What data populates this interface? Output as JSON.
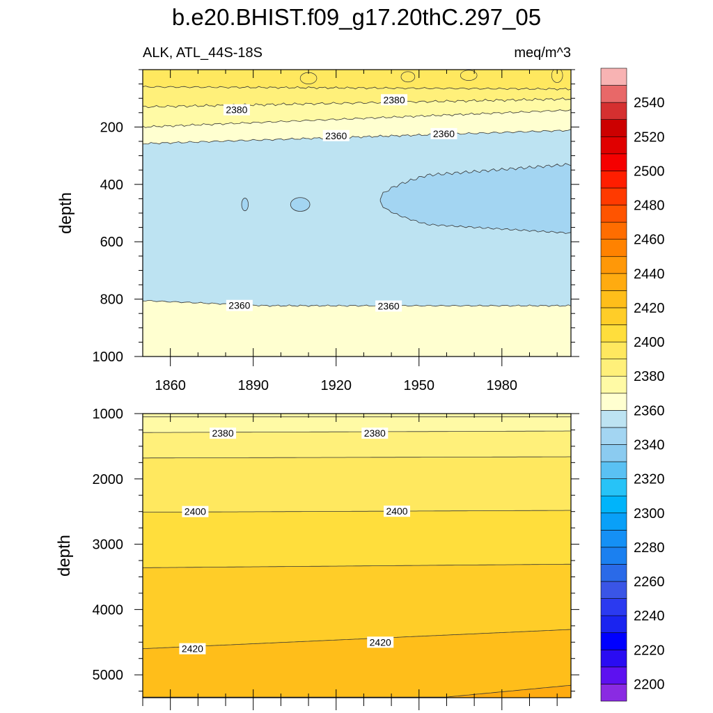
{
  "chart_data": {
    "type": "contour",
    "title": "b.e20.BHIST.f09_g17.20thC.297_05",
    "subtitle_left": "ALK, ATL_44S-18S",
    "subtitle_right": "meq/m^3",
    "x_range": [
      1850,
      2005
    ],
    "x_ticks": [
      "1860",
      "1890",
      "1920",
      "1950",
      "1980"
    ],
    "colorbar": {
      "levels": [
        2190,
        2200,
        2210,
        2220,
        2230,
        2240,
        2250,
        2260,
        2270,
        2280,
        2290,
        2300,
        2310,
        2320,
        2330,
        2340,
        2350,
        2360,
        2370,
        2380,
        2390,
        2400,
        2410,
        2420,
        2430,
        2440,
        2450,
        2460,
        2470,
        2480,
        2490,
        2500,
        2510,
        2520,
        2530,
        2540,
        2550,
        2560
      ],
      "labels": [
        "2200",
        "2220",
        "2240",
        "2260",
        "2280",
        "2300",
        "2320",
        "2340",
        "2360",
        "2380",
        "2400",
        "2420",
        "2440",
        "2460",
        "2480",
        "2500",
        "2520",
        "2540"
      ],
      "colors": [
        "#8a2be2",
        "#5d11f0",
        "#2a0cf2",
        "#0000ff",
        "#1a24f0",
        "#2b3af0",
        "#3a55e6",
        "#2a6ae8",
        "#1b80f0",
        "#1590f5",
        "#09a0f8",
        "#00b4fa",
        "#27c3f7",
        "#5ac1f3",
        "#8bcbf0",
        "#a3d5f2",
        "#bde3f2",
        "#ffffd0",
        "#fffaa5",
        "#fff07a",
        "#ffe85f",
        "#ffde3c",
        "#ffcd28",
        "#ffbe1a",
        "#ffab10",
        "#ff9808",
        "#ff8200",
        "#ff6d00",
        "#ff5400",
        "#ff3a00",
        "#ff1e00",
        "#f50000",
        "#e00000",
        "#cc0000",
        "#d53030",
        "#e86868",
        "#f8b3b3"
      ]
    },
    "panels": [
      {
        "ylabel": "depth",
        "y_range": [
          0,
          1000
        ],
        "y_ticks": [
          "200",
          "400",
          "600",
          "800",
          "1000"
        ],
        "contour_labels": [
          {
            "text": "2380",
            "x": 1884,
            "y": 140
          },
          {
            "text": "2380",
            "x": 1941,
            "y": 105
          },
          {
            "text": "2360",
            "x": 1920,
            "y": 230
          },
          {
            "text": "2360",
            "x": 1959,
            "y": 223
          },
          {
            "text": "2360",
            "x": 1885,
            "y": 822
          },
          {
            "text": "2360",
            "x": 1939,
            "y": 824
          }
        ]
      },
      {
        "ylabel": "depth",
        "y_range": [
          1000,
          5350
        ],
        "y_ticks": [
          "1000",
          "2000",
          "3000",
          "4000",
          "5000"
        ],
        "contour_labels": [
          {
            "text": "2380",
            "x": 1879,
            "y": 1300
          },
          {
            "text": "2380",
            "x": 1934,
            "y": 1300
          },
          {
            "text": "2400",
            "x": 1869,
            "y": 2500
          },
          {
            "text": "2400",
            "x": 1942,
            "y": 2495
          },
          {
            "text": "2420",
            "x": 1868,
            "y": 4600
          },
          {
            "text": "2420",
            "x": 1936,
            "y": 4500
          }
        ]
      }
    ]
  }
}
